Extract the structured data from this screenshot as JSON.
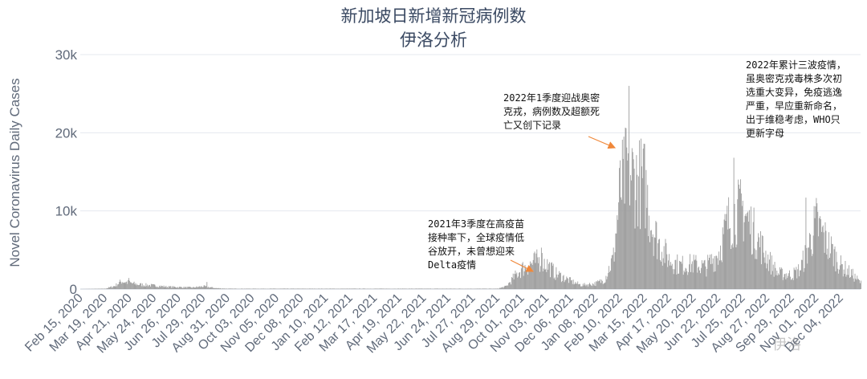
{
  "chart_data": {
    "type": "bar",
    "title": "新加坡日新增新冠病例数",
    "subtitle": "伊洛分析",
    "ylabel": "Novel Coronavirus Daily Cases",
    "xlabel": "",
    "ylim": [
      0,
      30000
    ],
    "yticks": [
      0,
      10000,
      20000,
      30000
    ],
    "ytick_labels": [
      "0",
      "10k",
      "20k",
      "30k"
    ],
    "grid": true,
    "bar_color": "#999999",
    "x_start": "2020-02-15",
    "x_end": "2022-12-31",
    "x_tick_labels": [
      "Feb 15, 2020",
      "Mar 19, 2020",
      "Apr 21, 2020",
      "May 24, 2020",
      "Jun 26, 2020",
      "Jul 29, 2020",
      "Aug 31, 2020",
      "Oct 03, 2020",
      "Nov 05, 2020",
      "Dec 08, 2020",
      "Jan 10, 2021",
      "Feb 12, 2021",
      "Mar 17, 2021",
      "Apr 19, 2021",
      "May 22, 2021",
      "Jun 24, 2021",
      "Jul 27, 2021",
      "Aug 29, 2021",
      "Oct 01, 2021",
      "Nov 03, 2021",
      "Dec 06, 2021",
      "Jan 08, 2022",
      "Feb 10, 2022",
      "Mar 15, 2022",
      "Apr 17, 2022",
      "May 20, 2022",
      "Jun 22, 2022",
      "Jul 25, 2022",
      "Aug 27, 2022",
      "Sep 29, 2022",
      "Nov 01, 2022",
      "Dec 04, 2022"
    ],
    "weekly_avg_series": {
      "name": "",
      "x": [
        "2020-02-15",
        "2020-03-19",
        "2020-04-01",
        "2020-04-10",
        "2020-04-21",
        "2020-05-01",
        "2020-05-24",
        "2020-06-10",
        "2020-06-26",
        "2020-07-15",
        "2020-07-29",
        "2020-08-15",
        "2020-08-31",
        "2021-08-29",
        "2021-09-10",
        "2021-09-20",
        "2021-10-01",
        "2021-10-15",
        "2021-10-25",
        "2021-11-03",
        "2021-11-15",
        "2021-12-06",
        "2021-12-20",
        "2022-01-08",
        "2022-01-20",
        "2022-02-01",
        "2022-02-10",
        "2022-02-20",
        "2022-03-01",
        "2022-03-15",
        "2022-03-25",
        "2022-04-05",
        "2022-04-17",
        "2022-05-01",
        "2022-05-20",
        "2022-06-05",
        "2022-06-22",
        "2022-07-05",
        "2022-07-18",
        "2022-07-25",
        "2022-08-05",
        "2022-08-27",
        "2022-09-10",
        "2022-09-29",
        "2022-10-10",
        "2022-10-20",
        "2022-11-01",
        "2022-11-15",
        "2022-12-04",
        "2022-12-20",
        "2022-12-31"
      ],
      "values": [
        0,
        50,
        400,
        1000,
        800,
        600,
        450,
        300,
        250,
        200,
        350,
        120,
        50,
        50,
        350,
        1500,
        2600,
        3300,
        3700,
        3200,
        2000,
        1000,
        500,
        700,
        1200,
        4000,
        12500,
        15500,
        14000,
        13500,
        8000,
        5500,
        3800,
        3000,
        3200,
        2800,
        4500,
        8500,
        9800,
        10200,
        8000,
        4000,
        2000,
        1800,
        2500,
        5000,
        8500,
        6000,
        3000,
        1800,
        800
      ],
      "daily_peaks": [
        {
          "x": "2020-04-20",
          "y": 1420
        },
        {
          "x": "2020-08-03",
          "y": 906
        },
        {
          "x": "2021-10-27",
          "y": 5300
        },
        {
          "x": "2022-02-22",
          "y": 26000
        },
        {
          "x": "2022-07-13",
          "y": 16800
        },
        {
          "x": "2022-10-18",
          "y": 11700
        }
      ]
    }
  },
  "annotations": {
    "a1": "2021年3季度在高疫苗\n接种率下，全球疫情低\n谷放开，未曾想迎来\nDelta疫情",
    "a2": "2022年1季度迎战奥密\n克戎，病例数及超额死\n亡又创下记录",
    "a3": "2022年累计三波疫情，\n虽奥密克戎毒株多次初\n选重大变异，免疫逃逸\n严重，早应重新命名，\n出于维稳考虑，WHO只\n更新字母"
  },
  "colors": {
    "grid": "#e4e8ef",
    "axis_text": "#606a7a",
    "arrow": "#f0883a"
  },
  "watermark": "伊洛"
}
